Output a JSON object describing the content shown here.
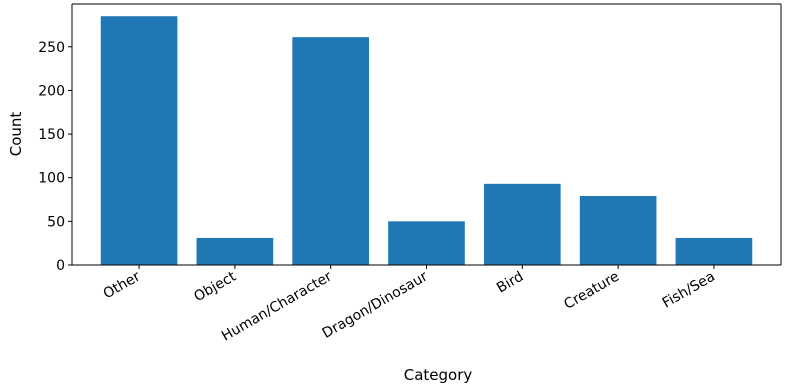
{
  "chart_data": {
    "type": "bar",
    "categories": [
      "Other",
      "Object",
      "Human/Character",
      "Dragon/Dinosaur",
      "Bird",
      "Creature",
      "Fish/Sea"
    ],
    "values": [
      285,
      31,
      261,
      50,
      93,
      79,
      31
    ],
    "title": "",
    "xlabel": "Category",
    "ylabel": "Count",
    "ylim": [
      0,
      299
    ],
    "yticks": [
      0,
      50,
      100,
      150,
      200,
      250
    ],
    "bar_color": "#1f77b4",
    "grid": false,
    "legend": "none"
  }
}
